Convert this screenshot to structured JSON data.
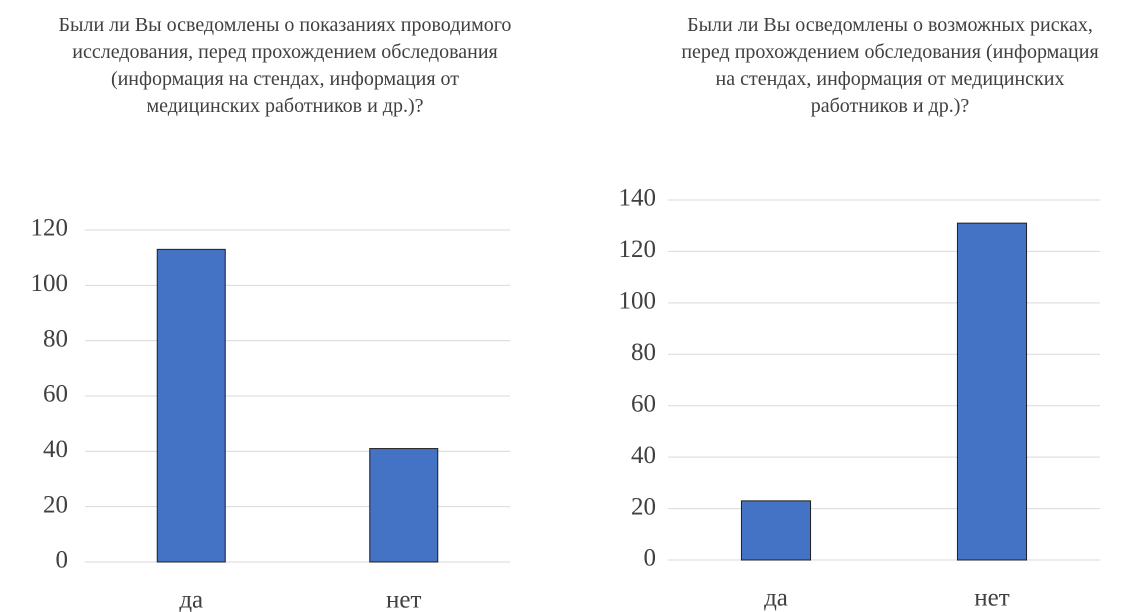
{
  "chart_data": [
    {
      "type": "bar",
      "title": "Были ли Вы осведомлены о показаниях проводимого исследования, перед прохождением обследования (информация на стендах, информация от медицинских работников и др.)?",
      "categories": [
        "да",
        "нет"
      ],
      "values": [
        113,
        41
      ],
      "color": "#4472c4",
      "ylim": [
        0,
        120
      ],
      "yticks": [
        0,
        20,
        40,
        60,
        80,
        100,
        120
      ],
      "grid": true
    },
    {
      "type": "bar",
      "title": "Были ли Вы осведомлены о возможных рисках, перед прохождением обследования (информация на стендах, информация от медицинских работников и др.)?",
      "categories": [
        "да",
        "нет"
      ],
      "values": [
        23,
        131
      ],
      "color": "#4472c4",
      "ylim": [
        0,
        140
      ],
      "yticks": [
        0,
        20,
        40,
        60,
        80,
        100,
        120,
        140
      ],
      "grid": true
    }
  ]
}
